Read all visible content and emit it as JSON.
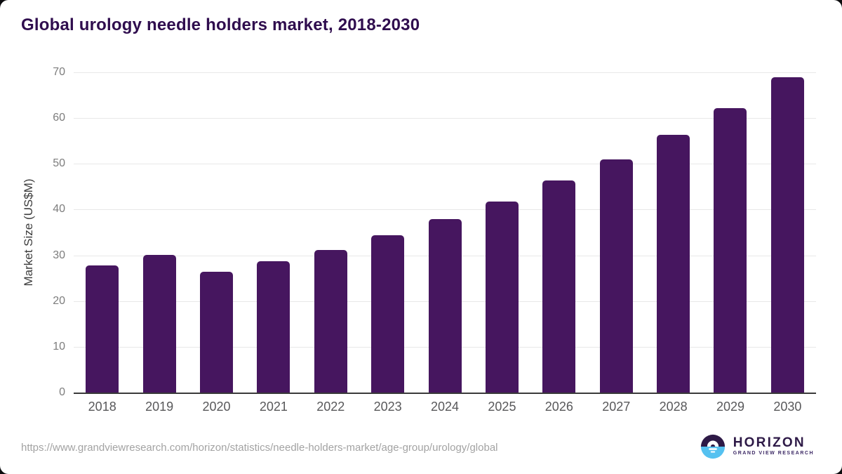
{
  "chart_data": {
    "type": "bar",
    "title": "Global urology needle holders market, 2018-2030",
    "xlabel": "",
    "ylabel": "Market Size (US$M)",
    "categories": [
      "2018",
      "2019",
      "2020",
      "2021",
      "2022",
      "2023",
      "2024",
      "2025",
      "2026",
      "2027",
      "2028",
      "2029",
      "2030"
    ],
    "values": [
      27.8,
      30.1,
      26.4,
      28.7,
      31.1,
      34.4,
      37.9,
      41.8,
      46.3,
      51.0,
      56.4,
      62.2,
      68.9
    ],
    "ylim": [
      0,
      70
    ],
    "yticks": [
      0,
      10,
      20,
      30,
      40,
      50,
      60,
      70
    ],
    "grid": true,
    "legend": false,
    "bar_color": "#46165f"
  },
  "colors": {
    "title": "#2f0d4e",
    "bar": "#46165f",
    "gridline": "#e8e8e8",
    "axis_line": "#3a3a3a",
    "y_tick_label": "#7d7d7d",
    "x_tick_label": "#58585a",
    "source_url": "#a3a3a3",
    "logo_dark_purple": "#2e1a47",
    "logo_light_blue": "#55c1f0"
  },
  "footer": {
    "source_url": "https://www.grandviewresearch.com/horizon/statistics/needle-holders-market/age-group/urology/global",
    "logo": {
      "name": "HORIZON",
      "subtitle": "GRAND VIEW RESEARCH"
    }
  }
}
